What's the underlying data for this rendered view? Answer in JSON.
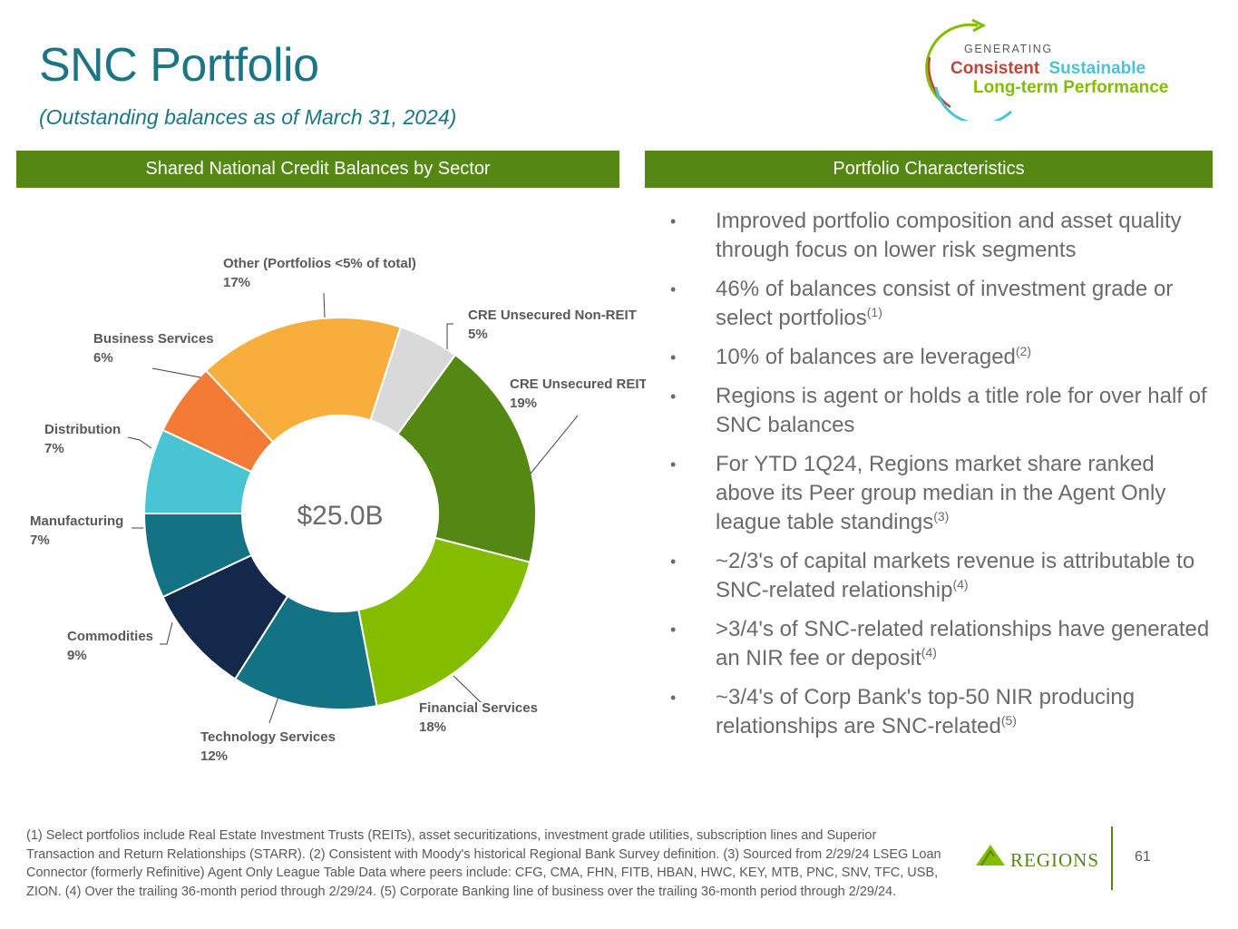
{
  "header": {
    "title": "SNC Portfolio",
    "subtitle": "(Outstanding balances as of March 31, 2024)"
  },
  "brand_mark": {
    "line1": "GENERATING",
    "word_consistent": "Consistent",
    "word_sustainable": "Sustainable",
    "line3": "Long-term Performance"
  },
  "left_panel": {
    "heading": "Shared National Credit Balances by Sector"
  },
  "right_panel": {
    "heading": "Portfolio Characteristics"
  },
  "chart_data": {
    "type": "pie",
    "variant": "donut",
    "center_label": "$25.0B",
    "slices": [
      {
        "name": "CRE Unsecured Non-REIT",
        "value": 5,
        "label": "5%",
        "color": "#d9d9d9"
      },
      {
        "name": "CRE Unsecured REIT",
        "value": 19,
        "label": "19%",
        "color": "#548713"
      },
      {
        "name": "Financial Services",
        "value": 18,
        "label": "18%",
        "color": "#84bd00"
      },
      {
        "name": "Technology Services",
        "value": 12,
        "label": "12%",
        "color": "#137283"
      },
      {
        "name": "Commodities",
        "value": 9,
        "label": "9%",
        "color": "#14284b"
      },
      {
        "name": "Manufacturing",
        "value": 7,
        "label": "7%",
        "color": "#137283"
      },
      {
        "name": "Distribution",
        "value": 7,
        "label": "7%",
        "color": "#48c4d3"
      },
      {
        "name": "Business Services",
        "value": 6,
        "label": "6%",
        "color": "#f47b35"
      },
      {
        "name": "Other (Portfolios <5% of total)",
        "value": 17,
        "label": "17%",
        "color": "#f8ae3c"
      }
    ]
  },
  "characteristics": [
    {
      "text": "Improved portfolio composition and asset quality through focus on lower risk segments",
      "sup": ""
    },
    {
      "text": "46% of balances consist of investment grade or select portfolios",
      "sup": "(1)"
    },
    {
      "text": "10% of balances are leveraged",
      "sup": "(2)"
    },
    {
      "text": "Regions is agent or holds a title role for over half of SNC balances",
      "sup": ""
    },
    {
      "text": "For YTD 1Q24, Regions market share ranked above its Peer group median in the Agent Only league table standings",
      "sup": "(3)"
    },
    {
      "text": "~2/3's of capital markets revenue is attributable to SNC-related relationship",
      "sup": "(4)"
    },
    {
      "text": ">3/4's of SNC-related relationships have generated an NIR fee or deposit",
      "sup": "(4)"
    },
    {
      "text": "~3/4's of Corp Bank's top-50 NIR producing relationships are SNC-related",
      "sup": "(5)"
    }
  ],
  "bullet_char": "•",
  "footnote": "(1) Select portfolios include Real Estate Investment Trusts (REITs), asset securitizations, investment grade utilities, subscription lines and Superior Transaction and Return Relationships (STARR).  (2) Consistent with Moody's historical Regional Bank Survey definition.  (3) Sourced from  2/29/24  LSEG Loan Connector (formerly Refinitive) Agent Only League Table Data where peers include: CFG, CMA, FHN, FITB, HBAN, HWC, KEY, MTB, PNC, SNV, TFC, USB, ZION.  (4) Over the trailing 36-month period through 2/29/24. (5) Corporate Banking line of business over the trailing 36-month period through 2/29/24.",
  "footer": {
    "brand": "REGIONS",
    "page_number": "61"
  },
  "colors": {
    "title": "#1a7687",
    "banner": "#548713",
    "text": "#6a6a6a"
  }
}
